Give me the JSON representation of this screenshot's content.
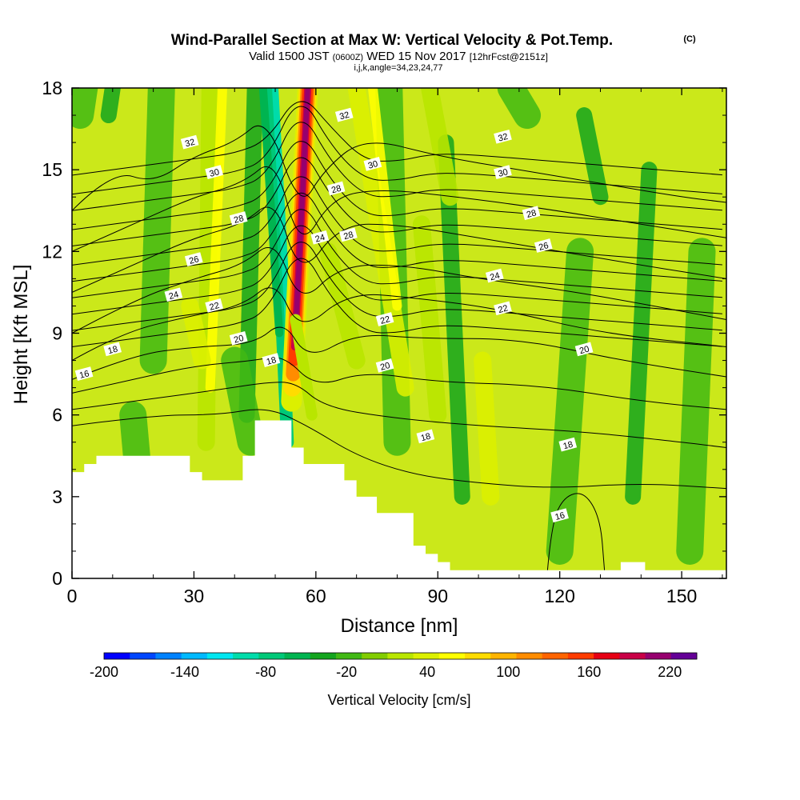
{
  "chart_data": {
    "type": "heatmap",
    "title": "Wind-Parallel Section at Max W: Vertical Velocity & Pot.Temp.",
    "title_tag": "(C)",
    "subtitle": {
      "valid": "Valid 1500 JST",
      "utc": "(0600Z)",
      "date": "WED 15 Nov 2017",
      "fcst": "[12hrFcst@2151z]"
    },
    "index_line": "i,j,k,angle=34,23,24,77",
    "xlabel": "Distance [nm]",
    "ylabel": "Height [Kft MSL]",
    "xlim": [
      0,
      161
    ],
    "ylim": [
      0,
      18
    ],
    "x_ticks": [
      "0",
      "30",
      "60",
      "90",
      "120",
      "150"
    ],
    "y_ticks": [
      "0",
      "3",
      "6",
      "9",
      "12",
      "15",
      "18"
    ],
    "colorbar": {
      "label": "Vertical Velocity [cm/s]",
      "tick_labels": [
        "-200",
        "-140",
        "-80",
        "-20",
        "40",
        "100",
        "160",
        "220"
      ],
      "min": -200,
      "max": 240,
      "step": 20,
      "colors": [
        "#0000ff",
        "#0046ff",
        "#0082ff",
        "#00b9ff",
        "#00e6f0",
        "#00dcaa",
        "#00c878",
        "#00b450",
        "#14a51e",
        "#41b914",
        "#82cd00",
        "#b9e600",
        "#dcf000",
        "#ffff00",
        "#ffdc00",
        "#ffb400",
        "#ff8c00",
        "#ff6400",
        "#ff3c00",
        "#e60014",
        "#c80046",
        "#96006e",
        "#640096"
      ]
    },
    "background_category": "-20 to 0 cm/s (green-yellow)",
    "updraft_core": {
      "x": 57,
      "z_range": [
        8,
        18
      ],
      "peak_w": 220
    },
    "terrain_profile": [
      {
        "x": 0,
        "z": 3.9
      },
      {
        "x": 3,
        "z": 4.2
      },
      {
        "x": 6,
        "z": 4.5
      },
      {
        "x": 29,
        "z": 3.9
      },
      {
        "x": 32,
        "z": 3.6
      },
      {
        "x": 42,
        "z": 4.5
      },
      {
        "x": 45,
        "z": 5.8
      },
      {
        "x": 54,
        "z": 4.8
      },
      {
        "x": 57,
        "z": 4.2
      },
      {
        "x": 67,
        "z": 3.6
      },
      {
        "x": 70,
        "z": 3.0
      },
      {
        "x": 75,
        "z": 2.4
      },
      {
        "x": 84,
        "z": 1.2
      },
      {
        "x": 87,
        "z": 0.9
      },
      {
        "x": 90,
        "z": 0.6
      },
      {
        "x": 93,
        "z": 0.3
      },
      {
        "x": 135,
        "z": 0.6
      },
      {
        "x": 141,
        "z": 0.3
      },
      {
        "x": 161,
        "z": 0.3
      }
    ],
    "theta_contour_labels": [
      {
        "text": "32",
        "x": 29,
        "z": 16.0
      },
      {
        "text": "32",
        "x": 67,
        "z": 17.0
      },
      {
        "text": "32",
        "x": 106,
        "z": 16.2
      },
      {
        "text": "30",
        "x": 35,
        "z": 14.9
      },
      {
        "text": "30",
        "x": 74,
        "z": 15.2
      },
      {
        "text": "30",
        "x": 106,
        "z": 14.9
      },
      {
        "text": "28",
        "x": 41,
        "z": 13.2
      },
      {
        "text": "28",
        "x": 65,
        "z": 14.3
      },
      {
        "text": "28",
        "x": 68,
        "z": 12.6
      },
      {
        "text": "28",
        "x": 113,
        "z": 13.4
      },
      {
        "text": "26",
        "x": 30,
        "z": 11.7
      },
      {
        "text": "26",
        "x": 116,
        "z": 12.2
      },
      {
        "text": "24",
        "x": 25,
        "z": 10.4
      },
      {
        "text": "24",
        "x": 61,
        "z": 12.5
      },
      {
        "text": "24",
        "x": 104,
        "z": 11.1
      },
      {
        "text": "22",
        "x": 35,
        "z": 10.0
      },
      {
        "text": "22",
        "x": 77,
        "z": 9.5
      },
      {
        "text": "22",
        "x": 106,
        "z": 9.9
      },
      {
        "text": "20",
        "x": 41,
        "z": 8.8
      },
      {
        "text": "20",
        "x": 77,
        "z": 7.8
      },
      {
        "text": "20",
        "x": 126,
        "z": 8.4
      },
      {
        "text": "18",
        "x": 10,
        "z": 8.4
      },
      {
        "text": "18",
        "x": 49,
        "z": 8.0
      },
      {
        "text": "18",
        "x": 87,
        "z": 5.2
      },
      {
        "text": "18",
        "x": 122,
        "z": 4.9
      },
      {
        "text": "16",
        "x": 3,
        "z": 7.5
      },
      {
        "text": "16",
        "x": 120,
        "z": 2.3
      }
    ],
    "theta_contour_levels": [
      16,
      18,
      20,
      22,
      24,
      26,
      28,
      30,
      32
    ]
  }
}
